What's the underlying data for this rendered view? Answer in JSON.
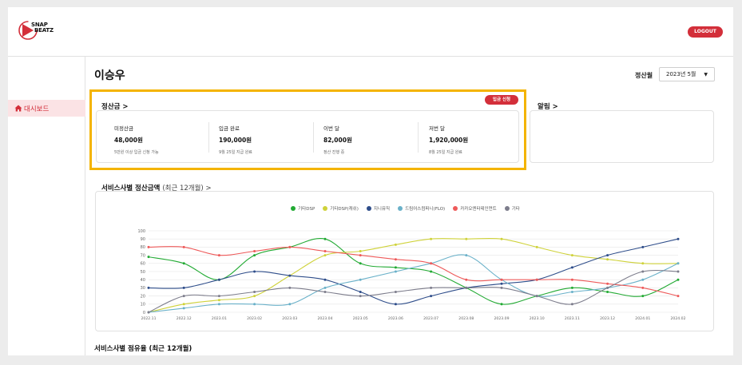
{
  "brand": {
    "line1": "SNAP",
    "line2": "BEATZ"
  },
  "header": {
    "logout_label": "LOGOUT"
  },
  "sidebar": {
    "items": [
      {
        "label": "대시보드",
        "active": true
      }
    ]
  },
  "page": {
    "title": "이승우"
  },
  "month_filter": {
    "label": "정산월",
    "selected": "2023년 5월"
  },
  "settlement": {
    "title": "정산금 >",
    "request_label": "입금 신청",
    "stats": [
      {
        "label": "미정산금",
        "value": "48,000원",
        "note": "5만원 이상 입금 신청 가능"
      },
      {
        "label": "입금 완료",
        "value": "190,000원",
        "note": "9월 25일 지급 완료"
      },
      {
        "label": "이번 달",
        "value": "82,000원",
        "note": "정산 진행 중"
      },
      {
        "label": "저번 달",
        "value": "1,920,000원",
        "note": "8월 25일 지급 완료"
      }
    ]
  },
  "notice": {
    "title": "알림 >"
  },
  "chart_section": {
    "title": "서비스사별 정산금액",
    "subtitle": "(최근 12개월) >"
  },
  "next_section": {
    "title": "서비스사별 점유율 (최근 12개월)"
  },
  "chart_data": {
    "type": "line",
    "x": [
      "2022.11",
      "2022.12",
      "2023.01",
      "2023.02",
      "2023.03",
      "2023.04",
      "2023.05",
      "2023.06",
      "2023.07",
      "2023.08",
      "2023.09",
      "2023.10",
      "2023.11",
      "2023.12",
      "2024.01",
      "2024.02"
    ],
    "yticks": [
      0,
      10,
      20,
      30,
      40,
      50,
      60,
      70,
      80,
      90,
      100
    ],
    "ylim": [
      0,
      100
    ],
    "grid": true,
    "legend_position": "top",
    "series": [
      {
        "name": "기타DSP",
        "color": "#22aa33",
        "values": [
          68,
          60,
          40,
          70,
          80,
          90,
          60,
          55,
          50,
          30,
          10,
          20,
          30,
          25,
          20,
          40
        ]
      },
      {
        "name": "기타DSP(캐쉬)",
        "color": "#cfd23a",
        "values": [
          0,
          10,
          15,
          20,
          45,
          70,
          75,
          83,
          90,
          90,
          90,
          80,
          70,
          65,
          60,
          60
        ]
      },
      {
        "name": "지니뮤직",
        "color": "#2e4d8a",
        "values": [
          30,
          30,
          40,
          50,
          45,
          40,
          25,
          10,
          20,
          30,
          35,
          40,
          55,
          70,
          80,
          90
        ]
      },
      {
        "name": "드림어스컴퍼니(FLO)",
        "color": "#6ab1c9",
        "values": [
          0,
          5,
          10,
          10,
          10,
          30,
          40,
          50,
          60,
          70,
          40,
          20,
          25,
          30,
          40,
          60
        ]
      },
      {
        "name": "카카오엔터테인먼트",
        "color": "#ee5a5a",
        "values": [
          80,
          80,
          70,
          75,
          80,
          75,
          70,
          65,
          60,
          40,
          40,
          40,
          40,
          35,
          30,
          20
        ]
      },
      {
        "name": "기타",
        "color": "#7d7d8c",
        "values": [
          0,
          20,
          20,
          25,
          30,
          25,
          20,
          25,
          30,
          30,
          30,
          20,
          10,
          30,
          50,
          50
        ]
      }
    ]
  }
}
